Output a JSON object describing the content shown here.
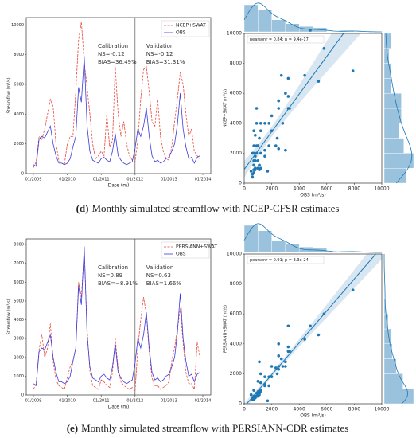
{
  "chart_data": [
    {
      "type": "line",
      "ylabel": "Streamflow (m³/s)",
      "xlabel": "Date (m)",
      "x": [
        "01/2009",
        "02/2009",
        "03/2009",
        "04/2009",
        "05/2009",
        "06/2009",
        "07/2009",
        "08/2009",
        "09/2009",
        "10/2009",
        "11/2009",
        "12/2009",
        "01/2010",
        "02/2010",
        "03/2010",
        "04/2010",
        "05/2010",
        "06/2010",
        "07/2010",
        "08/2010",
        "09/2010",
        "10/2010",
        "11/2010",
        "12/2010",
        "01/2011",
        "02/2011",
        "03/2011",
        "04/2011",
        "05/2011",
        "06/2011",
        "07/2011",
        "08/2011",
        "09/2011",
        "10/2011",
        "11/2011",
        "12/2011",
        "01/2012",
        "02/2012",
        "03/2012",
        "04/2012",
        "05/2012",
        "06/2012",
        "07/2012",
        "08/2012",
        "09/2012",
        "10/2012",
        "11/2012",
        "12/2012",
        "01/2013",
        "02/2013",
        "03/2013",
        "04/2013",
        "05/2013",
        "06/2013",
        "07/2013",
        "08/2013",
        "09/2013",
        "10/2013",
        "11/2013",
        "12/2013"
      ],
      "series": [
        {
          "name": "NCEP+SWAT",
          "color": "#e8483c",
          "dash": true,
          "values": [
            400,
            800,
            2500,
            2300,
            3000,
            4000,
            5000,
            4500,
            2000,
            900,
            700,
            600,
            2000,
            2500,
            2500,
            5500,
            9000,
            10200,
            7500,
            5800,
            4000,
            2000,
            1000,
            1200,
            1500,
            1200,
            4000,
            1800,
            2200,
            7200,
            4000,
            2500,
            3500,
            2000,
            1200,
            900,
            800,
            2200,
            5000,
            7000,
            7200,
            5500,
            3500,
            3200,
            5000,
            2500,
            1500,
            1000,
            900,
            1800,
            3500,
            5000,
            6800,
            6000,
            4000,
            2500,
            3000,
            1500,
            1200,
            1000
          ]
        },
        {
          "name": "OBS",
          "color": "#3b3bdc",
          "dash": false,
          "values": [
            600,
            500,
            2300,
            2500,
            2400,
            2800,
            3200,
            2000,
            1200,
            700,
            700,
            600,
            700,
            1000,
            1800,
            2500,
            5800,
            4800,
            7900,
            3200,
            1500,
            900,
            800,
            700,
            1000,
            1100,
            900,
            800,
            1500,
            2700,
            1200,
            900,
            700,
            600,
            700,
            800,
            1700,
            3000,
            2500,
            3200,
            4400,
            2500,
            1200,
            800,
            900,
            700,
            800,
            1000,
            1100,
            1500,
            2000,
            3300,
            5400,
            3000,
            1800,
            1000,
            1100,
            700,
            1100,
            1200
          ]
        }
      ],
      "xticks": [
        "01/2009",
        "01/2010",
        "01/2011",
        "01/2012",
        "01/2013",
        "01/2014"
      ],
      "divider": "01/2012",
      "calibration": [
        "Calibration",
        "NS=-0.12",
        "BIAS=36.49%"
      ],
      "validation": [
        "Validation",
        "NS=-0.12",
        "BIAS=31.31%"
      ],
      "ylim": [
        0,
        10500
      ],
      "yticks": [
        0,
        2000,
        4000,
        6000,
        8000,
        10000
      ],
      "legend": "upper right"
    },
    {
      "type": "scatter",
      "xlabel": "OBS (m³/s)",
      "ylabel": "NCEP+SWAT (m³/s)",
      "color": "#1f77b4",
      "legend_text": "pearsonr = 0.84; p = 9.4e-17",
      "xlim": [
        0,
        10000
      ],
      "xticks": [
        0,
        2000,
        4000,
        6000,
        8000,
        10000
      ],
      "ylim": [
        0,
        10000
      ],
      "yticks": [
        0,
        2000,
        4000,
        6000,
        8000,
        10000
      ],
      "top_hist": {
        "bins": [
          0,
          1000,
          2000,
          3000,
          4000,
          5000,
          6000,
          7000,
          8000
        ],
        "counts": [
          20,
          16,
          9,
          6,
          4,
          3,
          0,
          1
        ]
      },
      "right_hist": {
        "bins": [
          0,
          1000,
          2000,
          3000,
          4000,
          5000,
          6000,
          7000,
          8000,
          9000,
          10000
        ],
        "counts": [
          9,
          12,
          8,
          6,
          7,
          7,
          3,
          3,
          2,
          3
        ]
      }
    },
    {
      "type": "line",
      "ylabel": "Streamflow (m³/s)",
      "xlabel": "Date (m)",
      "x": [
        "01/2009",
        "02/2009",
        "03/2009",
        "04/2009",
        "05/2009",
        "06/2009",
        "07/2009",
        "08/2009",
        "09/2009",
        "10/2009",
        "11/2009",
        "12/2009",
        "01/2010",
        "02/2010",
        "03/2010",
        "04/2010",
        "05/2010",
        "06/2010",
        "07/2010",
        "08/2010",
        "09/2010",
        "10/2010",
        "11/2010",
        "12/2010",
        "01/2011",
        "02/2011",
        "03/2011",
        "04/2011",
        "05/2011",
        "06/2011",
        "07/2011",
        "08/2011",
        "09/2011",
        "10/2011",
        "11/2011",
        "12/2011",
        "01/2012",
        "02/2012",
        "03/2012",
        "04/2012",
        "05/2012",
        "06/2012",
        "07/2012",
        "08/2012",
        "09/2012",
        "10/2012",
        "11/2012",
        "12/2012",
        "01/2013",
        "02/2013",
        "03/2013",
        "04/2013",
        "05/2013",
        "06/2013",
        "07/2013",
        "08/2013",
        "09/2013",
        "10/2013",
        "11/2013",
        "12/2013"
      ],
      "series": [
        {
          "name": "PERSIANN+SWAT",
          "color": "#e8483c",
          "dash": true,
          "values": [
            300,
            600,
            2400,
            3200,
            2000,
            2500,
            3800,
            1800,
            800,
            500,
            400,
            300,
            900,
            1500,
            1800,
            2500,
            6000,
            5200,
            7600,
            3500,
            1300,
            500,
            400,
            300,
            800,
            700,
            500,
            400,
            1200,
            3000,
            1400,
            700,
            500,
            400,
            300,
            400,
            200,
            2500,
            4000,
            5200,
            4300,
            2300,
            900,
            500,
            500,
            300,
            400,
            500,
            700,
            1800,
            2500,
            3500,
            4600,
            2800,
            1200,
            600,
            600,
            300,
            2800,
            2000
          ]
        },
        {
          "name": "OBS",
          "color": "#3b3bdc",
          "dash": false,
          "values": [
            600,
            500,
            2300,
            2500,
            2400,
            2800,
            3200,
            2000,
            1200,
            700,
            700,
            600,
            700,
            1000,
            1800,
            2500,
            5800,
            4800,
            7900,
            3200,
            1500,
            900,
            800,
            700,
            1000,
            1100,
            900,
            800,
            1500,
            2700,
            1200,
            900,
            700,
            600,
            700,
            800,
            1700,
            3000,
            2500,
            3200,
            4400,
            2500,
            1200,
            800,
            900,
            700,
            800,
            1000,
            1100,
            1500,
            2000,
            3300,
            5400,
            3000,
            1800,
            1000,
            1100,
            700,
            1100,
            1200
          ]
        }
      ],
      "xticks": [
        "01/2009",
        "01/2010",
        "01/2011",
        "01/2012",
        "01/2013",
        "01/2014"
      ],
      "divider": "01/2012",
      "calibration": [
        "Calibration",
        "NS=0.89",
        "BIAS=−8.91%"
      ],
      "validation": [
        "Validation",
        "NS=0.63",
        "BIAS=1.66%"
      ],
      "ylim": [
        0,
        8300
      ],
      "yticks": [
        0,
        1000,
        2000,
        3000,
        4000,
        5000,
        6000,
        7000,
        8000
      ],
      "legend": "upper right"
    },
    {
      "type": "scatter",
      "xlabel": "OBS (m³/s)",
      "ylabel": "PERSIANN+SWAT (m³/s)",
      "color": "#1f77b4",
      "legend_text": "pearsonr = 0.91; p = 3.3e-24",
      "xlim": [
        0,
        10000
      ],
      "xticks": [
        0,
        2000,
        4000,
        6000,
        8000,
        10000
      ],
      "ylim": [
        0,
        10000
      ],
      "yticks": [
        0,
        2000,
        4000,
        6000,
        8000,
        10000
      ],
      "top_hist": {
        "bins": [
          0,
          1000,
          2000,
          3000,
          4000,
          5000,
          6000,
          7000,
          8000
        ],
        "counts": [
          20,
          16,
          9,
          6,
          4,
          3,
          0,
          1
        ]
      },
      "right_hist": {
        "bins": [
          0,
          1000,
          2000,
          3000,
          4000,
          5000,
          6000,
          7000,
          8000
        ],
        "counts": [
          22,
          14,
          9,
          6,
          5,
          3,
          1,
          0
        ]
      }
    }
  ],
  "captions": [
    {
      "tag": "(d)",
      "text": "Monthly simulated streamflow with NCEP-CFSR estimates"
    },
    {
      "tag": "(e)",
      "text": "Monthly simulated streamflow with PERSIANN-CDR estimates"
    }
  ]
}
